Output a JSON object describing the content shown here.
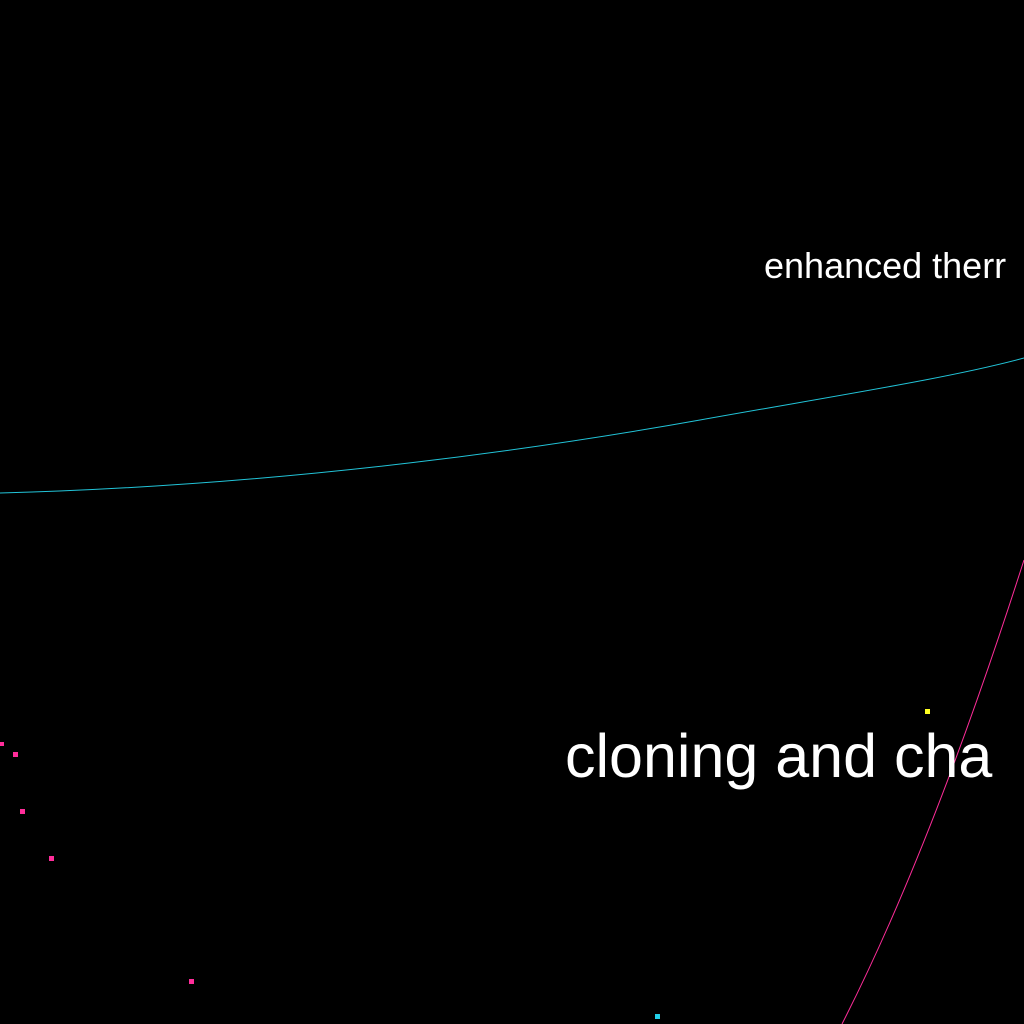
{
  "labels": {
    "upper": "enhanced therr",
    "lower": "cloning and cha"
  },
  "colors": {
    "background": "#000000",
    "text": "#ffffff",
    "cyan_curve": "#22c4d8",
    "pink_curve": "#ff2d9a",
    "pink_dot": "#ff2d9a",
    "yellow_dot": "#ffff22",
    "cyan_dot": "#22d0e8"
  }
}
